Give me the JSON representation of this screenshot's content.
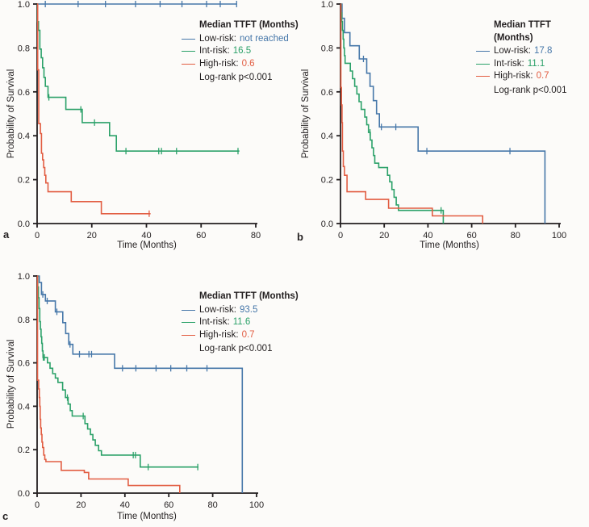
{
  "chart_data": [
    {
      "panel_label": "a",
      "type": "line",
      "subtype": "kaplan-meier-step",
      "xlabel": "Time (Months)",
      "ylabel": "Probability of Survival",
      "xlim": [
        0,
        80
      ],
      "ylim": [
        0,
        1
      ],
      "x_ticks": [
        0,
        20,
        40,
        60,
        80
      ],
      "y_ticks": [
        0.0,
        0.2,
        0.4,
        0.6,
        0.8,
        1.0
      ],
      "grid": false,
      "axis_color": "#231F20",
      "legend": {
        "title": "Median TTFT (Months)",
        "entries": [
          {
            "label": "Low-risk:",
            "value": "not reached",
            "color": "#4677A9"
          },
          {
            "label": "Int-risk:",
            "value": "16.5",
            "color": "#2BA169"
          },
          {
            "label": "High-risk:",
            "value": "0.6",
            "color": "#E25D42"
          }
        ],
        "footer": "Log-rank p<0.001"
      },
      "series": [
        {
          "name": "Low-risk",
          "median_ttft": "not reached",
          "color": "#4677A9",
          "steps": [
            [
              0,
              1.0
            ],
            [
              73,
              1.0
            ]
          ],
          "censor_marks_x": [
            3,
            15,
            25,
            36,
            45,
            53,
            62,
            67,
            73
          ]
        },
        {
          "name": "Int-risk",
          "median_ttft": "16.5",
          "color": "#2BA169",
          "steps": [
            [
              0,
              1.0
            ],
            [
              0.15,
              0.92
            ],
            [
              0.5,
              0.88
            ],
            [
              1.0,
              0.795
            ],
            [
              1.5,
              0.755
            ],
            [
              2.0,
              0.71
            ],
            [
              2.5,
              0.665
            ],
            [
              3.0,
              0.625
            ],
            [
              4.0,
              0.575
            ],
            [
              10.5,
              0.52
            ],
            [
              16.5,
              0.46
            ],
            [
              26.5,
              0.4
            ],
            [
              29,
              0.33
            ],
            [
              74,
              0.33
            ]
          ],
          "censor_marks_x": [
            4.3,
            16,
            21,
            32.5,
            44.5,
            45.5,
            51,
            73.5
          ]
        },
        {
          "name": "High-risk",
          "median_ttft": "0.6",
          "color": "#E25D42",
          "steps": [
            [
              0,
              1.0
            ],
            [
              0.2,
              0.7
            ],
            [
              0.6,
              0.455
            ],
            [
              1.2,
              0.41
            ],
            [
              1.6,
              0.32
            ],
            [
              2.0,
              0.29
            ],
            [
              2.4,
              0.255
            ],
            [
              2.8,
              0.22
            ],
            [
              3.2,
              0.185
            ],
            [
              4.0,
              0.145
            ],
            [
              12.5,
              0.1
            ],
            [
              23.5,
              0.045
            ],
            [
              41.5,
              0.045
            ]
          ],
          "censor_marks_x": [
            41
          ]
        }
      ]
    },
    {
      "panel_label": "b",
      "type": "line",
      "subtype": "kaplan-meier-step",
      "xlabel": "Time (Months)",
      "ylabel": "Probability of Survival",
      "xlim": [
        0,
        100
      ],
      "ylim": [
        0,
        1
      ],
      "x_ticks": [
        0,
        20,
        40,
        60,
        80,
        100
      ],
      "y_ticks": [
        0.0,
        0.2,
        0.4,
        0.6,
        0.8,
        1.0
      ],
      "grid": false,
      "axis_color": "#231F20",
      "legend": {
        "title": "Median TTFT (Months)",
        "entries": [
          {
            "label": "Low-risk:",
            "value": "17.8",
            "color": "#4677A9"
          },
          {
            "label": "Int-risk:",
            "value": "11.1",
            "color": "#2BA169"
          },
          {
            "label": "High-risk:",
            "value": "0.7",
            "color": "#E25D42"
          }
        ],
        "footer": "Log-rank p<0.001"
      },
      "series": [
        {
          "name": "Low-risk",
          "median_ttft": "17.8",
          "color": "#4677A9",
          "steps": [
            [
              0,
              1.0
            ],
            [
              0.7,
              0.935
            ],
            [
              1.8,
              0.87
            ],
            [
              4.3,
              0.81
            ],
            [
              8.6,
              0.75
            ],
            [
              12,
              0.685
            ],
            [
              13.5,
              0.625
            ],
            [
              15,
              0.56
            ],
            [
              16.5,
              0.5
            ],
            [
              17.8,
              0.44
            ],
            [
              35.5,
              0.33
            ],
            [
              93.5,
              0
            ]
          ],
          "censor_marks_x": [
            10.5,
            18.7,
            25.3,
            39.5,
            77.5
          ]
        },
        {
          "name": "Int-risk",
          "median_ttft": "11.1",
          "color": "#2BA169",
          "steps": [
            [
              0,
              1.0
            ],
            [
              0.3,
              0.96
            ],
            [
              0.6,
              0.92
            ],
            [
              0.9,
              0.88
            ],
            [
              1.2,
              0.84
            ],
            [
              1.5,
              0.8
            ],
            [
              1.8,
              0.765
            ],
            [
              2.1,
              0.73
            ],
            [
              4.5,
              0.695
            ],
            [
              5.5,
              0.66
            ],
            [
              6.5,
              0.625
            ],
            [
              7.5,
              0.59
            ],
            [
              8.5,
              0.555
            ],
            [
              9.5,
              0.52
            ],
            [
              11.1,
              0.485
            ],
            [
              12,
              0.45
            ],
            [
              12.8,
              0.415
            ],
            [
              13.6,
              0.38
            ],
            [
              14.4,
              0.345
            ],
            [
              15.1,
              0.31
            ],
            [
              15.7,
              0.275
            ],
            [
              17.5,
              0.255
            ],
            [
              21.5,
              0.22
            ],
            [
              22.5,
              0.19
            ],
            [
              23.5,
              0.155
            ],
            [
              24.5,
              0.12
            ],
            [
              25.5,
              0.085
            ],
            [
              26.5,
              0.06
            ],
            [
              47,
              0
            ]
          ],
          "censor_marks_x": [
            13.5,
            46
          ]
        },
        {
          "name": "High-risk",
          "median_ttft": "0.7",
          "color": "#E25D42",
          "steps": [
            [
              0,
              1.0
            ],
            [
              0.2,
              0.62
            ],
            [
              0.45,
              0.54
            ],
            [
              0.7,
              0.46
            ],
            [
              0.9,
              0.33
            ],
            [
              1.3,
              0.26
            ],
            [
              1.8,
              0.22
            ],
            [
              3.0,
              0.145
            ],
            [
              11.5,
              0.11
            ],
            [
              22,
              0.07
            ],
            [
              42,
              0.035
            ],
            [
              65,
              0
            ]
          ],
          "censor_marks_x": []
        }
      ]
    },
    {
      "panel_label": "c",
      "type": "line",
      "subtype": "kaplan-meier-step",
      "xlabel": "Time (Months)",
      "ylabel": "Probability of Survival",
      "xlim": [
        0,
        100
      ],
      "ylim": [
        0,
        1
      ],
      "x_ticks": [
        0,
        20,
        40,
        60,
        80,
        100
      ],
      "y_ticks": [
        0.0,
        0.2,
        0.4,
        0.6,
        0.8,
        1.0
      ],
      "grid": false,
      "axis_color": "#231F20",
      "legend": {
        "title": "Median TTFT (Months)",
        "entries": [
          {
            "label": "Low-risk:",
            "value": "93.5",
            "color": "#4677A9"
          },
          {
            "label": "Int-risk:",
            "value": "11.6",
            "color": "#2BA169"
          },
          {
            "label": "High-risk:",
            "value": "0.7",
            "color": "#E25D42"
          }
        ],
        "footer": "Log-rank p<0.001"
      },
      "series": [
        {
          "name": "Low-risk",
          "median_ttft": "93.5",
          "color": "#4677A9",
          "steps": [
            [
              0,
              1.0
            ],
            [
              1,
              0.97
            ],
            [
              2,
              0.915
            ],
            [
              3.8,
              0.885
            ],
            [
              8.3,
              0.835
            ],
            [
              11.7,
              0.785
            ],
            [
              13,
              0.735
            ],
            [
              14.4,
              0.685
            ],
            [
              16.3,
              0.64
            ],
            [
              35.3,
              0.575
            ],
            [
              93.5,
              0
            ]
          ],
          "censor_marks_x": [
            2.6,
            4.6,
            9,
            15,
            19.3,
            23.6,
            24.8,
            38.9,
            45,
            54.2,
            60.9,
            68.2,
            77.4
          ]
        },
        {
          "name": "Int-risk",
          "median_ttft": "11.6",
          "color": "#2BA169",
          "steps": [
            [
              0,
              1.0
            ],
            [
              0.3,
              0.95
            ],
            [
              0.6,
              0.9
            ],
            [
              0.9,
              0.85
            ],
            [
              1.2,
              0.79
            ],
            [
              1.5,
              0.755
            ],
            [
              1.8,
              0.72
            ],
            [
              2.1,
              0.69
            ],
            [
              2.4,
              0.655
            ],
            [
              2.7,
              0.625
            ],
            [
              4.7,
              0.6
            ],
            [
              5.9,
              0.575
            ],
            [
              7.1,
              0.55
            ],
            [
              8.3,
              0.53
            ],
            [
              9.5,
              0.51
            ],
            [
              11.6,
              0.475
            ],
            [
              12.9,
              0.44
            ],
            [
              14.1,
              0.41
            ],
            [
              15.1,
              0.38
            ],
            [
              16,
              0.355
            ],
            [
              21.8,
              0.32
            ],
            [
              23,
              0.295
            ],
            [
              24.3,
              0.27
            ],
            [
              25.4,
              0.245
            ],
            [
              26.5,
              0.22
            ],
            [
              28,
              0.195
            ],
            [
              29.3,
              0.175
            ],
            [
              47,
              0.12
            ],
            [
              73.5,
              0.12
            ]
          ],
          "censor_marks_x": [
            2.8,
            3.3,
            13.8,
            21,
            43.8,
            44.8,
            50.6,
            73.2
          ]
        },
        {
          "name": "High-risk",
          "median_ttft": "0.7",
          "color": "#E25D42",
          "steps": [
            [
              0,
              1.0
            ],
            [
              0.2,
              0.52
            ],
            [
              0.7,
              0.48
            ],
            [
              1.0,
              0.44
            ],
            [
              1.2,
              0.4
            ],
            [
              1.4,
              0.34
            ],
            [
              1.6,
              0.3
            ],
            [
              1.9,
              0.27
            ],
            [
              2.2,
              0.235
            ],
            [
              2.5,
              0.21
            ],
            [
              3.0,
              0.175
            ],
            [
              3.5,
              0.155
            ],
            [
              4.0,
              0.145
            ],
            [
              11,
              0.105
            ],
            [
              21.5,
              0.095
            ],
            [
              23.5,
              0.065
            ],
            [
              41.5,
              0.035
            ],
            [
              65,
              0
            ]
          ],
          "censor_marks_x": []
        }
      ]
    }
  ]
}
